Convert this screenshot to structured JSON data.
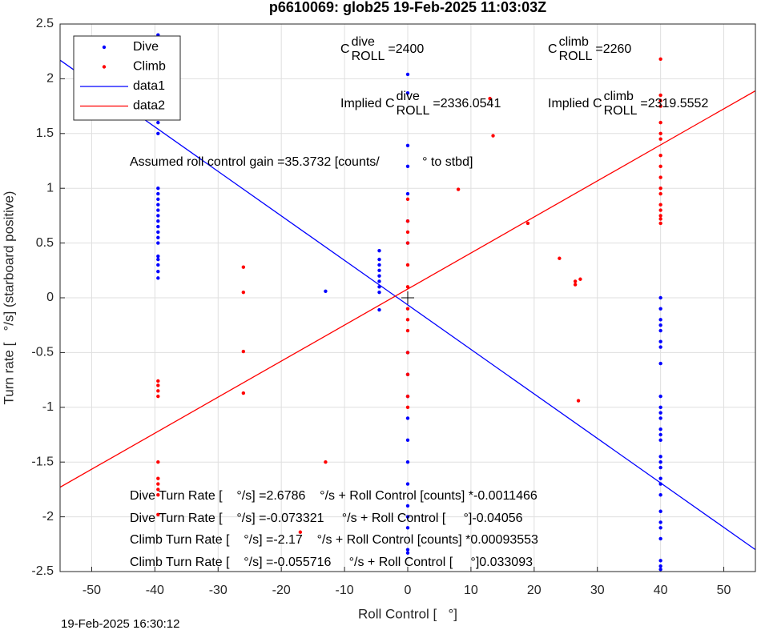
{
  "chart_data": {
    "type": "scatter",
    "title": "p6610069: glob25 19-Feb-2025 11:03:03Z",
    "x_label": "Roll Control [   °]",
    "y_label": "Turn rate [   °/s] (starboard positive)",
    "footer": "19-Feb-2025 16:30:12",
    "xlim": [
      -55,
      55
    ],
    "ylim": [
      -2.5,
      2.5
    ],
    "xticks": [
      -50,
      -40,
      -30,
      -20,
      -10,
      0,
      10,
      20,
      30,
      40,
      50
    ],
    "yticks": [
      -2.5,
      -2,
      -1.5,
      -1,
      -0.5,
      0,
      0.5,
      1,
      1.5,
      2,
      2.5
    ],
    "grid": true,
    "legend": "upper left",
    "series": [
      {
        "name": "Dive",
        "type": "scatter",
        "color": "#0000ff",
        "x": [
          -39.5,
          -39.5,
          -39.5,
          -39.5,
          -39.5,
          -39.5,
          -39.5,
          -39.5,
          -39.5,
          -39.5,
          -39.5,
          -39.5,
          -39.5,
          -39.5,
          -39.5,
          -39.5,
          -39.5,
          -39.5,
          -39.5,
          -39.5,
          -39.5,
          -39.5,
          40,
          40,
          40,
          40,
          40,
          40,
          40,
          40,
          40,
          40,
          40,
          40,
          40,
          40,
          40,
          40,
          40,
          40,
          40,
          40,
          40,
          40,
          40,
          40,
          40,
          40,
          40,
          40,
          0,
          0,
          0,
          0,
          0,
          0,
          0,
          0,
          0,
          0,
          0,
          0,
          0,
          0,
          0,
          0,
          0,
          0,
          0,
          -4.5,
          -4.5,
          -4.5,
          -4.5,
          -4.5,
          -4.5,
          -4.5,
          -4.5,
          -4.5,
          -13
        ],
        "values": [
          2.4,
          2.3,
          2.0,
          1.65,
          1.6,
          1.5,
          1.0,
          0.95,
          0.9,
          0.85,
          0.8,
          0.75,
          0.7,
          0.65,
          0.6,
          0.55,
          0.5,
          0.38,
          0.35,
          0.3,
          0.24,
          0.18,
          0,
          -0.1,
          -0.2,
          -0.25,
          -0.3,
          -0.4,
          -0.45,
          -0.6,
          -0.9,
          -1.0,
          -1.05,
          -1.1,
          -1.2,
          -1.25,
          -1.3,
          -1.45,
          -1.5,
          -1.55,
          -1.65,
          -1.7,
          -1.8,
          -1.95,
          -2.05,
          -2.1,
          -2.2,
          -2.4,
          -2.45,
          -2.48,
          2.04,
          1.87,
          1.39,
          1.2,
          0.95,
          0.7,
          0.5,
          -0.5,
          -0.7,
          -0.9,
          -1.1,
          -1.3,
          -1.5,
          -1.7,
          -1.9,
          -2.0,
          -2.1,
          -2.3,
          -2.33,
          0.43,
          0.35,
          0.3,
          0.25,
          0.2,
          0.15,
          0.1,
          0.05,
          -0.11,
          0.06
        ]
      },
      {
        "name": "Climb",
        "type": "scatter",
        "color": "#ff0000",
        "x": [
          -39.5,
          -39.5,
          -39.5,
          -39.5,
          -39.5,
          -39.5,
          -39.5,
          -39.5,
          -39.5,
          -39.5,
          -26,
          -26,
          -26,
          -26,
          -13,
          -17,
          0,
          0,
          0,
          0,
          0,
          0,
          0,
          0,
          0,
          0,
          0,
          0,
          0,
          8,
          13,
          13.5,
          19,
          24,
          26.5,
          26.5,
          27.3,
          27,
          40,
          40,
          40,
          40,
          40,
          40,
          40,
          40,
          40,
          40,
          40,
          40,
          40,
          40,
          40,
          40,
          40
        ],
        "values": [
          -0.76,
          -0.8,
          -0.85,
          -0.9,
          -1.5,
          -1.65,
          -1.7,
          -1.75,
          -1.8,
          -1.98,
          0.28,
          0.05,
          -0.49,
          -0.87,
          -1.5,
          -2.14,
          0.9,
          0.7,
          0.6,
          0.5,
          0.3,
          0.1,
          -0.1,
          -0.2,
          -0.3,
          -0.5,
          -0.7,
          -0.9,
          -1.0,
          0.99,
          1.82,
          1.48,
          0.68,
          0.36,
          0.15,
          0.12,
          0.17,
          -0.94,
          2.18,
          1.85,
          1.8,
          1.75,
          1.6,
          1.5,
          1.45,
          1.3,
          1.2,
          1.1,
          1.0,
          0.95,
          0.85,
          0.8,
          0.75,
          0.72,
          0.68
        ]
      },
      {
        "name": "data1",
        "type": "line",
        "color": "#0000ff",
        "x": [
          -55,
          55
        ],
        "values": [
          2.17,
          -2.3
        ]
      },
      {
        "name": "data2",
        "type": "line",
        "color": "#ff0000",
        "x": [
          -55,
          55
        ],
        "values": [
          -1.73,
          1.89
        ]
      }
    ],
    "annotations": [
      {
        "main": "C",
        "sup": "dive",
        "sub": "ROLL",
        "value": "=2400"
      },
      {
        "main": "C",
        "sup": "climb",
        "sub": "ROLL",
        "value": "=2260"
      },
      {
        "main": "Implied C",
        "sup": "dive",
        "sub": "ROLL",
        "value": "=2336.0541"
      },
      {
        "main": "Implied C",
        "sup": "climb",
        "sub": "ROLL",
        "value": "=2319.5552"
      },
      {
        "main": "Assumed roll control gain =35.3732 [counts/            ° to stbd]"
      },
      {
        "main": "Dive Turn Rate [    °/s] =2.6786    °/s + Roll Control [counts] *-0.0011466"
      },
      {
        "main": "Dive Turn Rate [    °/s] =-0.073321     °/s + Roll Control [     °]-0.04056"
      },
      {
        "main": "Climb Turn Rate [    °/s] =-2.17    °/s + Roll Control [counts] *0.00093553"
      },
      {
        "main": "Climb Turn Rate [    °/s] =-0.055716     °/s + Roll Control [     °]0.033093"
      }
    ]
  }
}
